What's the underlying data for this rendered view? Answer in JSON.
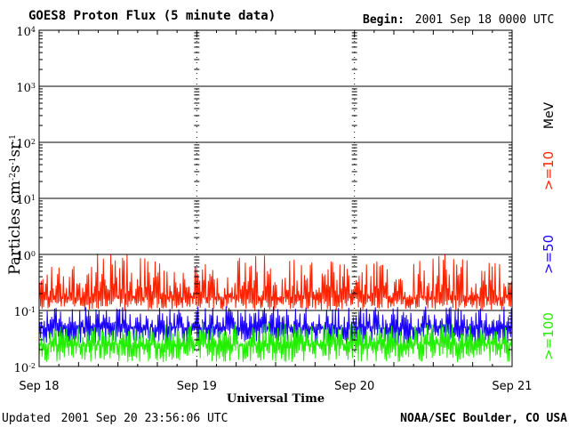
{
  "header": {
    "title": "GOES8 Proton Flux (5 minute data)",
    "begin_label": "Begin:",
    "begin_value": "2001 Sep 18 0000 UTC"
  },
  "footer": {
    "updated_label": "Updated",
    "updated_value": "2001 Sep 20 23:56:06 UTC",
    "credit": "NOAA/SEC Boulder, CO USA"
  },
  "colors": {
    "ge10": "#ff2200",
    "ge50": "#1a00ff",
    "ge100": "#22ee00"
  },
  "chart_data": {
    "type": "line",
    "title": "GOES8 Proton Flux (5 minute data)",
    "xlabel": "Universal Time",
    "ylabel": "Particles cm-2s-1sr-1",
    "y_scale": "log",
    "ylim": [
      0.01,
      10000
    ],
    "x_ticks": [
      "Sep 18",
      "Sep 19",
      "Sep 20",
      "Sep 21"
    ],
    "y_ticks": [
      {
        "base": "10",
        "exp": "-2"
      },
      {
        "base": "10",
        "exp": "-1"
      },
      {
        "base": "10",
        "exp": "0"
      },
      {
        "base": "10",
        "exp": "1"
      },
      {
        "base": "10",
        "exp": "2"
      },
      {
        "base": "10",
        "exp": "3"
      },
      {
        "base": "10",
        "exp": "4"
      }
    ],
    "grid": true,
    "legend": {
      "placement": "right",
      "unit": "MeV",
      "entries": [
        ">=10",
        ">=50",
        ">=100"
      ]
    },
    "series": [
      {
        "name": ">=10",
        "color": "#ff2200",
        "typical": 0.17,
        "low": 0.1,
        "high": 0.6
      },
      {
        "name": ">=50",
        "color": "#1a00ff",
        "typical": 0.05,
        "low": 0.025,
        "high": 0.12
      },
      {
        "name": ">=100",
        "color": "#22ee00",
        "typical": 0.025,
        "low": 0.012,
        "high": 0.06
      }
    ]
  }
}
